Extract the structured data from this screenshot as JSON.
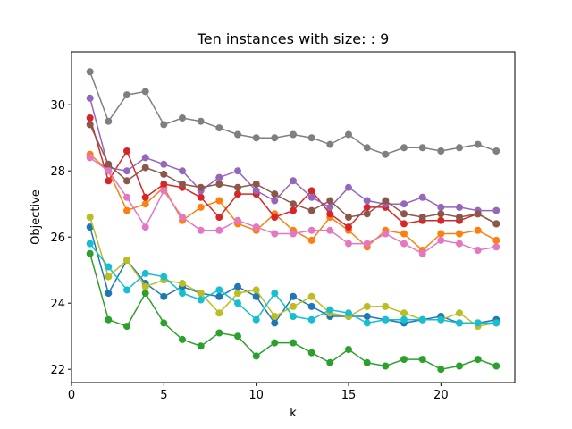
{
  "chart_data": {
    "type": "line",
    "title": "Ten instances with size: : 9",
    "xlabel": "k",
    "ylabel": "Objective",
    "xlim": [
      0,
      24
    ],
    "ylim": [
      21.6,
      31.6
    ],
    "xticks": [
      "0",
      "5",
      "10",
      "15",
      "20"
    ],
    "yticks": [
      "22",
      "24",
      "26",
      "28",
      "30"
    ],
    "grid": false,
    "legend": "none",
    "x": [
      1,
      2,
      3,
      4,
      5,
      6,
      7,
      8,
      9,
      10,
      11,
      12,
      13,
      14,
      15,
      16,
      17,
      18,
      19,
      20,
      21,
      22,
      23
    ],
    "series": [
      {
        "color": "#1f77b4",
        "values": [
          26.3,
          24.3,
          25.3,
          24.6,
          24.2,
          24.5,
          24.3,
          24.2,
          24.5,
          24.2,
          23.4,
          24.2,
          23.9,
          23.6,
          23.6,
          23.6,
          23.5,
          23.4,
          23.5,
          23.6,
          23.4,
          23.4,
          23.5
        ]
      },
      {
        "color": "#ff7f0e",
        "values": [
          28.5,
          28.0,
          26.8,
          27.0,
          27.5,
          26.5,
          26.9,
          27.1,
          26.4,
          26.2,
          26.7,
          26.2,
          25.9,
          26.6,
          26.2,
          25.7,
          26.2,
          26.1,
          25.6,
          26.1,
          26.1,
          26.2,
          25.9
        ]
      },
      {
        "color": "#2ca02c",
        "values": [
          25.5,
          23.5,
          23.3,
          24.3,
          23.4,
          22.9,
          22.7,
          23.1,
          23.0,
          22.4,
          22.8,
          22.8,
          22.5,
          22.2,
          22.6,
          22.2,
          22.1,
          22.3,
          22.3,
          22.0,
          22.1,
          22.3,
          22.1
        ]
      },
      {
        "color": "#d62728",
        "values": [
          29.6,
          27.7,
          28.6,
          27.2,
          27.6,
          27.5,
          27.2,
          26.6,
          27.3,
          27.3,
          26.6,
          26.8,
          27.4,
          26.7,
          26.3,
          26.9,
          26.9,
          26.4,
          26.5,
          26.5,
          26.5,
          26.7,
          26.4
        ]
      },
      {
        "color": "#9467bd",
        "values": [
          30.2,
          28.1,
          28.0,
          28.4,
          28.2,
          28.0,
          27.4,
          27.8,
          28.0,
          27.4,
          27.1,
          27.7,
          27.2,
          26.9,
          27.5,
          27.1,
          27.0,
          27.0,
          27.2,
          26.9,
          26.9,
          26.8,
          26.8
        ]
      },
      {
        "color": "#8c564b",
        "values": [
          29.4,
          28.2,
          27.7,
          28.1,
          27.9,
          27.6,
          27.5,
          27.6,
          27.5,
          27.6,
          27.3,
          27.0,
          26.8,
          27.1,
          26.6,
          26.7,
          27.1,
          26.7,
          26.6,
          26.7,
          26.6,
          26.7,
          26.4
        ]
      },
      {
        "color": "#e377c2",
        "values": [
          28.4,
          28.0,
          27.2,
          26.3,
          27.4,
          26.6,
          26.2,
          26.2,
          26.5,
          26.3,
          26.1,
          26.1,
          26.2,
          26.2,
          25.8,
          25.8,
          26.1,
          25.8,
          25.5,
          25.9,
          25.8,
          25.6,
          25.7
        ]
      },
      {
        "color": "#7f7f7f",
        "values": [
          31.0,
          29.5,
          30.3,
          30.4,
          29.4,
          29.6,
          29.5,
          29.3,
          29.1,
          29.0,
          29.0,
          29.1,
          29.0,
          28.8,
          29.1,
          28.7,
          28.5,
          28.7,
          28.7,
          28.6,
          28.7,
          28.8,
          28.6
        ]
      },
      {
        "color": "#bcbd22",
        "values": [
          26.6,
          24.8,
          25.3,
          24.5,
          24.7,
          24.6,
          24.3,
          23.7,
          24.3,
          24.4,
          23.6,
          23.9,
          24.2,
          23.7,
          23.6,
          23.9,
          23.9,
          23.7,
          23.5,
          23.5,
          23.7,
          23.3,
          23.4
        ]
      },
      {
        "color": "#17becf",
        "values": [
          25.8,
          25.1,
          24.4,
          24.9,
          24.8,
          24.3,
          24.1,
          24.4,
          24.0,
          23.5,
          24.3,
          23.6,
          23.5,
          23.8,
          23.7,
          23.4,
          23.5,
          23.5,
          23.5,
          23.5,
          23.4,
          23.4,
          23.4
        ]
      }
    ]
  }
}
